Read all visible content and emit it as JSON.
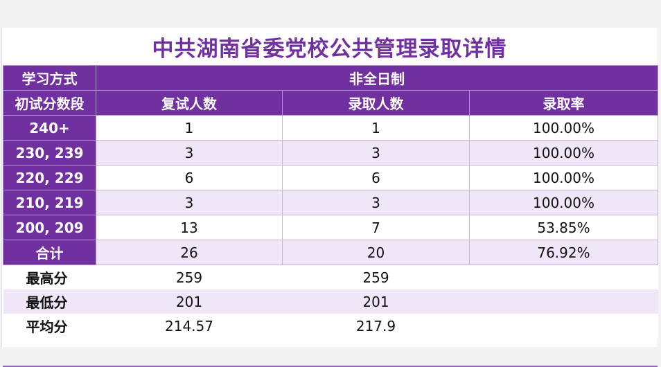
{
  "title": "中共湖南省委党校公共管理录取详情",
  "header": {
    "mode_label": "学习方式",
    "mode_value": "非全日制",
    "band_label": "初试分数段",
    "columns": [
      "复试人数",
      "录取人数",
      "录取率"
    ]
  },
  "rows": [
    {
      "band": "240+",
      "retest": "1",
      "admitted": "1",
      "rate": "100.00%"
    },
    {
      "band": "230, 239",
      "retest": "3",
      "admitted": "3",
      "rate": "100.00%"
    },
    {
      "band": "220, 229",
      "retest": "6",
      "admitted": "6",
      "rate": "100.00%"
    },
    {
      "band": "210, 219",
      "retest": "3",
      "admitted": "3",
      "rate": "100.00%"
    },
    {
      "band": "200, 209",
      "retest": "13",
      "admitted": "7",
      "rate": "53.85%"
    },
    {
      "band": "合计",
      "retest": "26",
      "admitted": "20",
      "rate": "76.92%"
    }
  ],
  "stats": [
    {
      "label": "最高分",
      "retest": "259",
      "admitted": "259"
    },
    {
      "label": "最低分",
      "retest": "201",
      "admitted": "201"
    },
    {
      "label": "平均分",
      "retest": "214.57",
      "admitted": "217.9"
    }
  ]
}
